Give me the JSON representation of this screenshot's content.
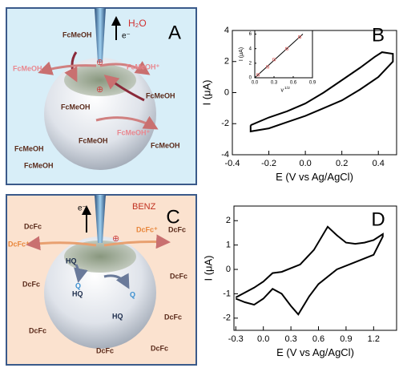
{
  "diagrams": [
    {
      "label": "A",
      "solvent": "H₂O",
      "electron": "e⁻",
      "species": [
        "FcMeOH",
        "FcMeOH",
        "FcMeOH⁺",
        "FcMeOH",
        "FcMeOH",
        "FcMeOH⁺",
        "FcMeOH",
        "FcMeOH",
        "FcMeOH",
        "FcMeOH"
      ]
    },
    {
      "label": "C",
      "solvent": "BENZ",
      "electron": "e⁻",
      "species": [
        "DcFc",
        "DcFc⁺",
        "DcFc⁺",
        "DcFc",
        "DcFc",
        "DcFc",
        "DcFc",
        "DcFc",
        "DcFc",
        "DcFc",
        "HQ",
        "HQ",
        "HQ",
        "Q",
        "Q"
      ]
    }
  ],
  "chart_data": [
    {
      "type": "line",
      "panel_label": "B",
      "xlabel": "E (V vs Ag/AgCl)",
      "ylabel": "I (μA)",
      "color": "#000000",
      "x": [
        -0.3,
        -0.2,
        -0.1,
        0.0,
        0.1,
        0.2,
        0.3,
        0.38,
        0.42,
        0.48,
        0.48,
        0.4,
        0.3,
        0.2,
        0.1,
        0.0,
        -0.1,
        -0.2,
        -0.3,
        -0.3
      ],
      "y": [
        -2.1,
        -1.6,
        -1.2,
        -0.7,
        0.0,
        0.8,
        1.6,
        2.3,
        2.6,
        2.5,
        2.0,
        1.0,
        0.2,
        -0.5,
        -1.0,
        -1.5,
        -1.9,
        -2.3,
        -2.5,
        -2.1
      ],
      "xlim": [
        -0.4,
        0.5
      ],
      "xticks": [
        -0.4,
        -0.2,
        {
          "value": 0,
          "label": "0.0"
        },
        0.2,
        0.4
      ],
      "ylim": [
        -4,
        4
      ],
      "yticks": [
        -4,
        -2,
        0,
        2,
        4
      ]
    },
    {
      "type": "scatter",
      "xlabel": "v",
      "xlabel_superscript": "1/2",
      "ylabel": "I (μA)",
      "color": "#e07070",
      "line_color": "#000000",
      "x": [
        0.05,
        0.2,
        0.3,
        0.5,
        0.7
      ],
      "y": [
        0.4,
        1.5,
        2.5,
        4.0,
        5.6
      ],
      "fit": {
        "x": [
          0.0,
          0.75
        ],
        "y": [
          0.0,
          6.0
        ]
      },
      "xlim": [
        0,
        0.9
      ],
      "xticks": [
        {
          "value": 0,
          "label": "0.0"
        },
        0.3,
        0.6,
        0.9
      ],
      "ylim": [
        0,
        6.5
      ],
      "yticks": [
        0,
        2,
        4,
        6
      ]
    },
    {
      "type": "line",
      "panel_label": "D",
      "xlabel": "E (V vs Ag/AgCl)",
      "ylabel": "I (μA)",
      "color": "#000000",
      "x": [
        -0.3,
        -0.1,
        0.0,
        0.1,
        0.2,
        0.4,
        0.55,
        0.7,
        0.8,
        0.9,
        1.0,
        1.1,
        1.2,
        1.3,
        1.3,
        1.2,
        1.0,
        0.8,
        0.6,
        0.5,
        0.38,
        0.3,
        0.2,
        0.1,
        0.0,
        -0.1,
        -0.2,
        -0.3
      ],
      "y": [
        -1.15,
        -0.75,
        -0.5,
        -0.15,
        -0.1,
        0.2,
        0.8,
        1.75,
        1.4,
        1.1,
        1.05,
        1.1,
        1.2,
        1.45,
        1.35,
        0.6,
        0.3,
        0.0,
        -0.6,
        -1.1,
        -1.85,
        -1.5,
        -1.0,
        -0.8,
        -1.2,
        -1.45,
        -1.35,
        -1.2
      ],
      "xlim": [
        -0.32,
        1.45
      ],
      "xticks": [
        -0.3,
        {
          "value": 0,
          "label": "0.0"
        },
        0.3,
        0.6,
        0.9,
        1.2
      ],
      "ylim": [
        -2.5,
        2.6
      ],
      "yticks": [
        -2,
        -1,
        0,
        1,
        2
      ]
    }
  ]
}
